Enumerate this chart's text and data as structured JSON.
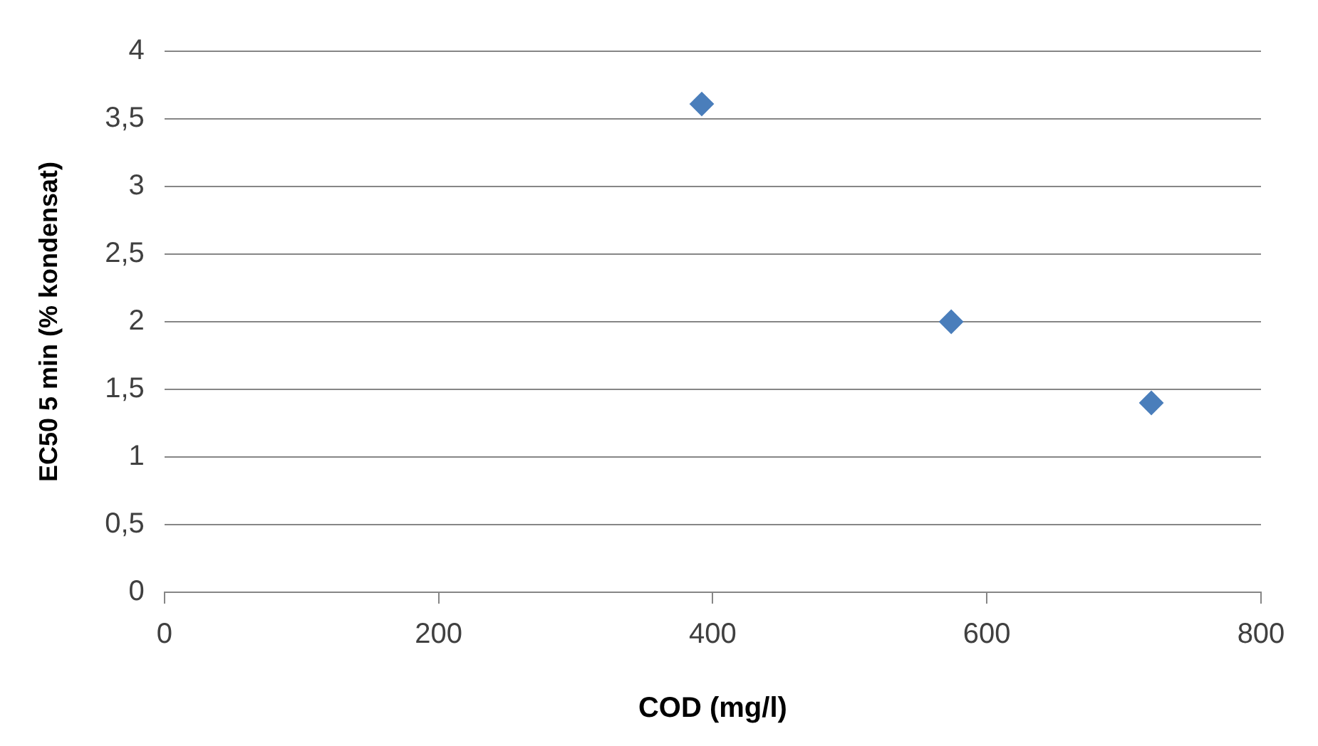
{
  "chart_data": {
    "type": "scatter",
    "xlabel": "COD (mg/l)",
    "ylabel": "EC50 5 min (% kondensat)",
    "x": [
      392,
      574,
      720
    ],
    "series": [
      {
        "color": "#4a7ebb",
        "values": [
          3.61,
          2.0,
          1.4
        ]
      }
    ],
    "xlim": [
      0,
      800
    ],
    "xticks": [
      0,
      200,
      400,
      600,
      800
    ],
    "ylim": [
      0,
      4
    ],
    "yticks": [
      0,
      {
        "value": 0.5,
        "label": "0,5"
      },
      1,
      {
        "value": 1.5,
        "label": "1,5"
      },
      2,
      {
        "value": 2.5,
        "label": "2,5"
      },
      3,
      {
        "value": 3.5,
        "label": "3,5"
      },
      4
    ],
    "grid": "y",
    "marker": "diamond",
    "legend": false
  }
}
